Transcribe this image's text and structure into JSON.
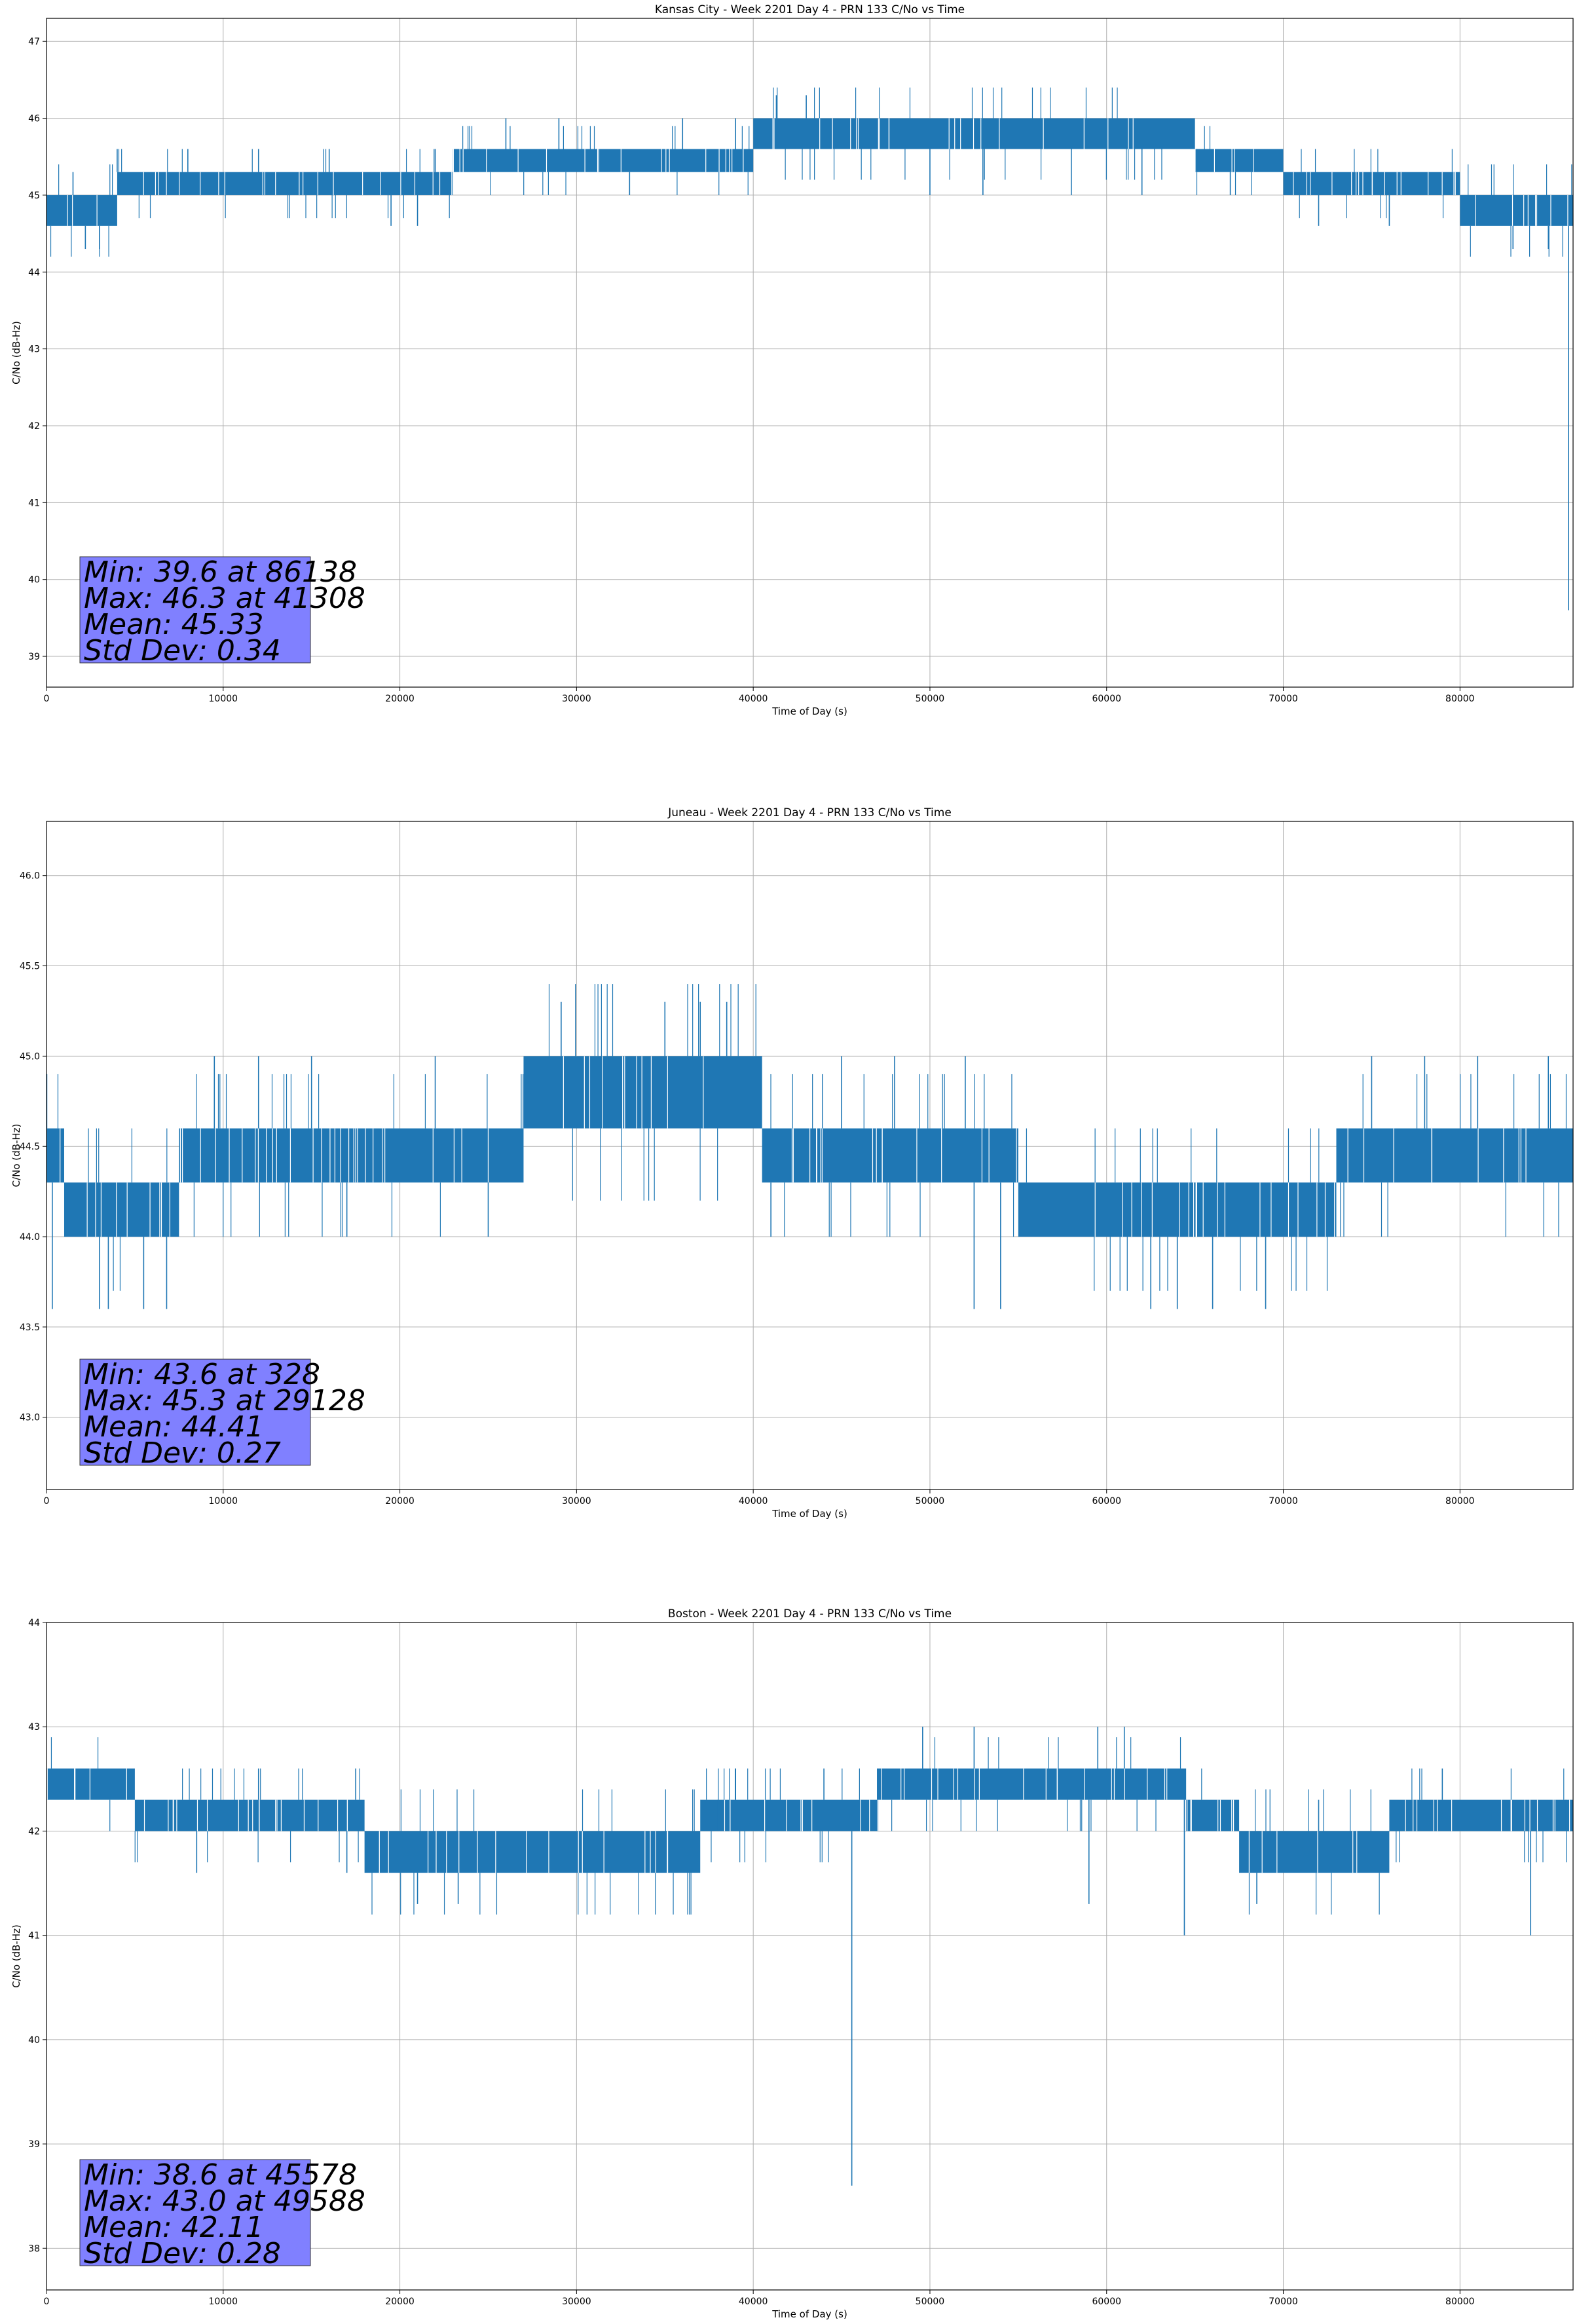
{
  "chart_data": [
    {
      "type": "line",
      "title": "Kansas City - Week 2201 Day 4 - PRN 133 C/No vs Time",
      "xlabel": "Time of Day (s)",
      "ylabel": "C/No (dB-Hz)",
      "xlim": [
        0,
        86400
      ],
      "ylim": [
        38.6,
        47.3
      ],
      "x_ticks": [
        "0",
        "10000",
        "20000",
        "30000",
        "40000",
        "50000",
        "60000",
        "70000",
        "80000"
      ],
      "y_ticks": [
        "39",
        "40",
        "41",
        "42",
        "43",
        "44",
        "45",
        "46",
        "47"
      ],
      "grid": true,
      "color": "#1f77b4",
      "band_segments": [
        {
          "x": [
            0,
            4000
          ],
          "range": [
            44.6,
            45.0
          ]
        },
        {
          "x": [
            4000,
            23000
          ],
          "range": [
            45.0,
            45.3
          ]
        },
        {
          "x": [
            23000,
            40000
          ],
          "range": [
            45.3,
            45.6
          ]
        },
        {
          "x": [
            40000,
            65000
          ],
          "range": [
            45.6,
            46.0
          ]
        },
        {
          "x": [
            65000,
            70000
          ],
          "range": [
            45.3,
            45.6
          ]
        },
        {
          "x": [
            70000,
            80000
          ],
          "range": [
            45.0,
            45.3
          ]
        },
        {
          "x": [
            80000,
            86400
          ],
          "range": [
            44.6,
            45.0
          ]
        }
      ],
      "spikes": [
        {
          "x": 1500,
          "y": 45.3
        },
        {
          "x": 2200,
          "y": 44.3
        },
        {
          "x": 3000,
          "y": 44.3
        },
        {
          "x": 4000,
          "y": 45.6
        },
        {
          "x": 8000,
          "y": 45.6
        },
        {
          "x": 12000,
          "y": 45.6
        },
        {
          "x": 16000,
          "y": 45.6
        },
        {
          "x": 19500,
          "y": 44.6
        },
        {
          "x": 21000,
          "y": 44.6
        },
        {
          "x": 22000,
          "y": 45.6
        },
        {
          "x": 26000,
          "y": 46.0
        },
        {
          "x": 29000,
          "y": 46.0
        },
        {
          "x": 33000,
          "y": 45.0
        },
        {
          "x": 36000,
          "y": 46.0
        },
        {
          "x": 39000,
          "y": 46.0
        },
        {
          "x": 41308,
          "y": 46.3
        },
        {
          "x": 43000,
          "y": 46.3
        },
        {
          "x": 50000,
          "y": 45.0
        },
        {
          "x": 53000,
          "y": 45.0
        },
        {
          "x": 58000,
          "y": 45.0
        },
        {
          "x": 62000,
          "y": 45.0
        },
        {
          "x": 67000,
          "y": 45.0
        },
        {
          "x": 72000,
          "y": 44.6
        },
        {
          "x": 76000,
          "y": 44.6
        },
        {
          "x": 83000,
          "y": 44.3
        },
        {
          "x": 85000,
          "y": 44.3
        },
        {
          "x": 86138,
          "y": 39.6
        }
      ],
      "stats": [
        "Min: 39.6 at 86138",
        "Max: 46.3 at 41308",
        "Mean: 45.33",
        "Std Dev: 0.34"
      ]
    },
    {
      "type": "line",
      "title": "Juneau - Week 2201 Day 4 - PRN 133 C/No vs Time",
      "xlabel": "Time of Day (s)",
      "ylabel": "C/No (dB-Hz)",
      "xlim": [
        0,
        86400
      ],
      "ylim": [
        42.6,
        46.3
      ],
      "x_ticks": [
        "0",
        "10000",
        "20000",
        "30000",
        "40000",
        "50000",
        "60000",
        "70000",
        "80000"
      ],
      "y_ticks": [
        "43.0",
        "43.5",
        "44.0",
        "44.5",
        "45.0",
        "45.5",
        "46.0"
      ],
      "grid": true,
      "color": "#1f77b4",
      "band_segments": [
        {
          "x": [
            0,
            1000
          ],
          "range": [
            44.3,
            44.6
          ]
        },
        {
          "x": [
            1000,
            7500
          ],
          "range": [
            44.0,
            44.3
          ]
        },
        {
          "x": [
            7500,
            27000
          ],
          "range": [
            44.3,
            44.6
          ]
        },
        {
          "x": [
            27000,
            40500
          ],
          "range": [
            44.6,
            45.0
          ]
        },
        {
          "x": [
            40500,
            55000
          ],
          "range": [
            44.3,
            44.6
          ]
        },
        {
          "x": [
            55000,
            73000
          ],
          "range": [
            44.0,
            44.3
          ]
        },
        {
          "x": [
            73000,
            86400
          ],
          "range": [
            44.3,
            44.6
          ]
        }
      ],
      "spikes": [
        {
          "x": 328,
          "y": 43.6
        },
        {
          "x": 3000,
          "y": 43.6
        },
        {
          "x": 3500,
          "y": 43.6
        },
        {
          "x": 5500,
          "y": 43.6
        },
        {
          "x": 6800,
          "y": 43.6
        },
        {
          "x": 9500,
          "y": 45.0
        },
        {
          "x": 12000,
          "y": 45.0
        },
        {
          "x": 15000,
          "y": 45.0
        },
        {
          "x": 17000,
          "y": 44.0
        },
        {
          "x": 22000,
          "y": 45.0
        },
        {
          "x": 25000,
          "y": 44.0
        },
        {
          "x": 29128,
          "y": 45.3
        },
        {
          "x": 35000,
          "y": 45.3
        },
        {
          "x": 37000,
          "y": 45.3
        },
        {
          "x": 38500,
          "y": 45.3
        },
        {
          "x": 41000,
          "y": 44.0
        },
        {
          "x": 45000,
          "y": 45.0
        },
        {
          "x": 48000,
          "y": 45.0
        },
        {
          "x": 52000,
          "y": 45.0
        },
        {
          "x": 52500,
          "y": 43.6
        },
        {
          "x": 54000,
          "y": 43.6
        },
        {
          "x": 62500,
          "y": 43.6
        },
        {
          "x": 64000,
          "y": 43.6
        },
        {
          "x": 66000,
          "y": 43.6
        },
        {
          "x": 69000,
          "y": 43.6
        },
        {
          "x": 75000,
          "y": 45.0
        },
        {
          "x": 78000,
          "y": 45.0
        },
        {
          "x": 81000,
          "y": 45.0
        },
        {
          "x": 85000,
          "y": 45.0
        }
      ],
      "stats": [
        "Min: 43.6 at 328",
        "Max: 45.3 at 29128",
        "Mean: 44.41",
        "Std Dev: 0.27"
      ]
    },
    {
      "type": "line",
      "title": "Boston - Week 2201 Day 4 - PRN 133 C/No vs Time",
      "xlabel": "Time of Day (s)",
      "ylabel": "C/No (dB-Hz)",
      "xlim": [
        0,
        86400
      ],
      "ylim": [
        37.6,
        44.0
      ],
      "x_ticks": [
        "0",
        "10000",
        "20000",
        "30000",
        "40000",
        "50000",
        "60000",
        "70000",
        "80000"
      ],
      "y_ticks": [
        "38",
        "39",
        "40",
        "41",
        "42",
        "43",
        "44"
      ],
      "grid": true,
      "color": "#1f77b4",
      "band_segments": [
        {
          "x": [
            0,
            5000
          ],
          "range": [
            42.3,
            42.6
          ]
        },
        {
          "x": [
            5000,
            18000
          ],
          "range": [
            42.0,
            42.3
          ]
        },
        {
          "x": [
            18000,
            37000
          ],
          "range": [
            41.6,
            42.0
          ]
        },
        {
          "x": [
            37000,
            47000
          ],
          "range": [
            42.0,
            42.3
          ]
        },
        {
          "x": [
            47000,
            64500
          ],
          "range": [
            42.3,
            42.6
          ]
        },
        {
          "x": [
            64500,
            67500
          ],
          "range": [
            42.0,
            42.3
          ]
        },
        {
          "x": [
            67500,
            76000
          ],
          "range": [
            41.6,
            42.0
          ]
        },
        {
          "x": [
            76000,
            86400
          ],
          "range": [
            42.0,
            42.3
          ]
        }
      ],
      "spikes": [
        {
          "x": 8500,
          "y": 41.6
        },
        {
          "x": 12000,
          "y": 42.6
        },
        {
          "x": 17000,
          "y": 41.6
        },
        {
          "x": 17500,
          "y": 42.6
        },
        {
          "x": 21000,
          "y": 41.3
        },
        {
          "x": 23300,
          "y": 41.3
        },
        {
          "x": 38000,
          "y": 42.3
        },
        {
          "x": 39000,
          "y": 42.6
        },
        {
          "x": 44000,
          "y": 42.6
        },
        {
          "x": 45578,
          "y": 38.6
        },
        {
          "x": 49588,
          "y": 43.0
        },
        {
          "x": 52500,
          "y": 43.0
        },
        {
          "x": 59000,
          "y": 41.3
        },
        {
          "x": 59500,
          "y": 43.0
        },
        {
          "x": 61000,
          "y": 43.0
        },
        {
          "x": 64400,
          "y": 41.0
        },
        {
          "x": 68500,
          "y": 41.3
        },
        {
          "x": 72000,
          "y": 42.3
        },
        {
          "x": 79000,
          "y": 42.6
        },
        {
          "x": 84000,
          "y": 41.0
        },
        {
          "x": 86000,
          "y": 42.3
        }
      ],
      "stats": [
        "Min: 38.6 at 45578",
        "Max: 43.0 at 49588",
        "Mean: 42.11",
        "Std Dev: 0.28"
      ]
    }
  ]
}
